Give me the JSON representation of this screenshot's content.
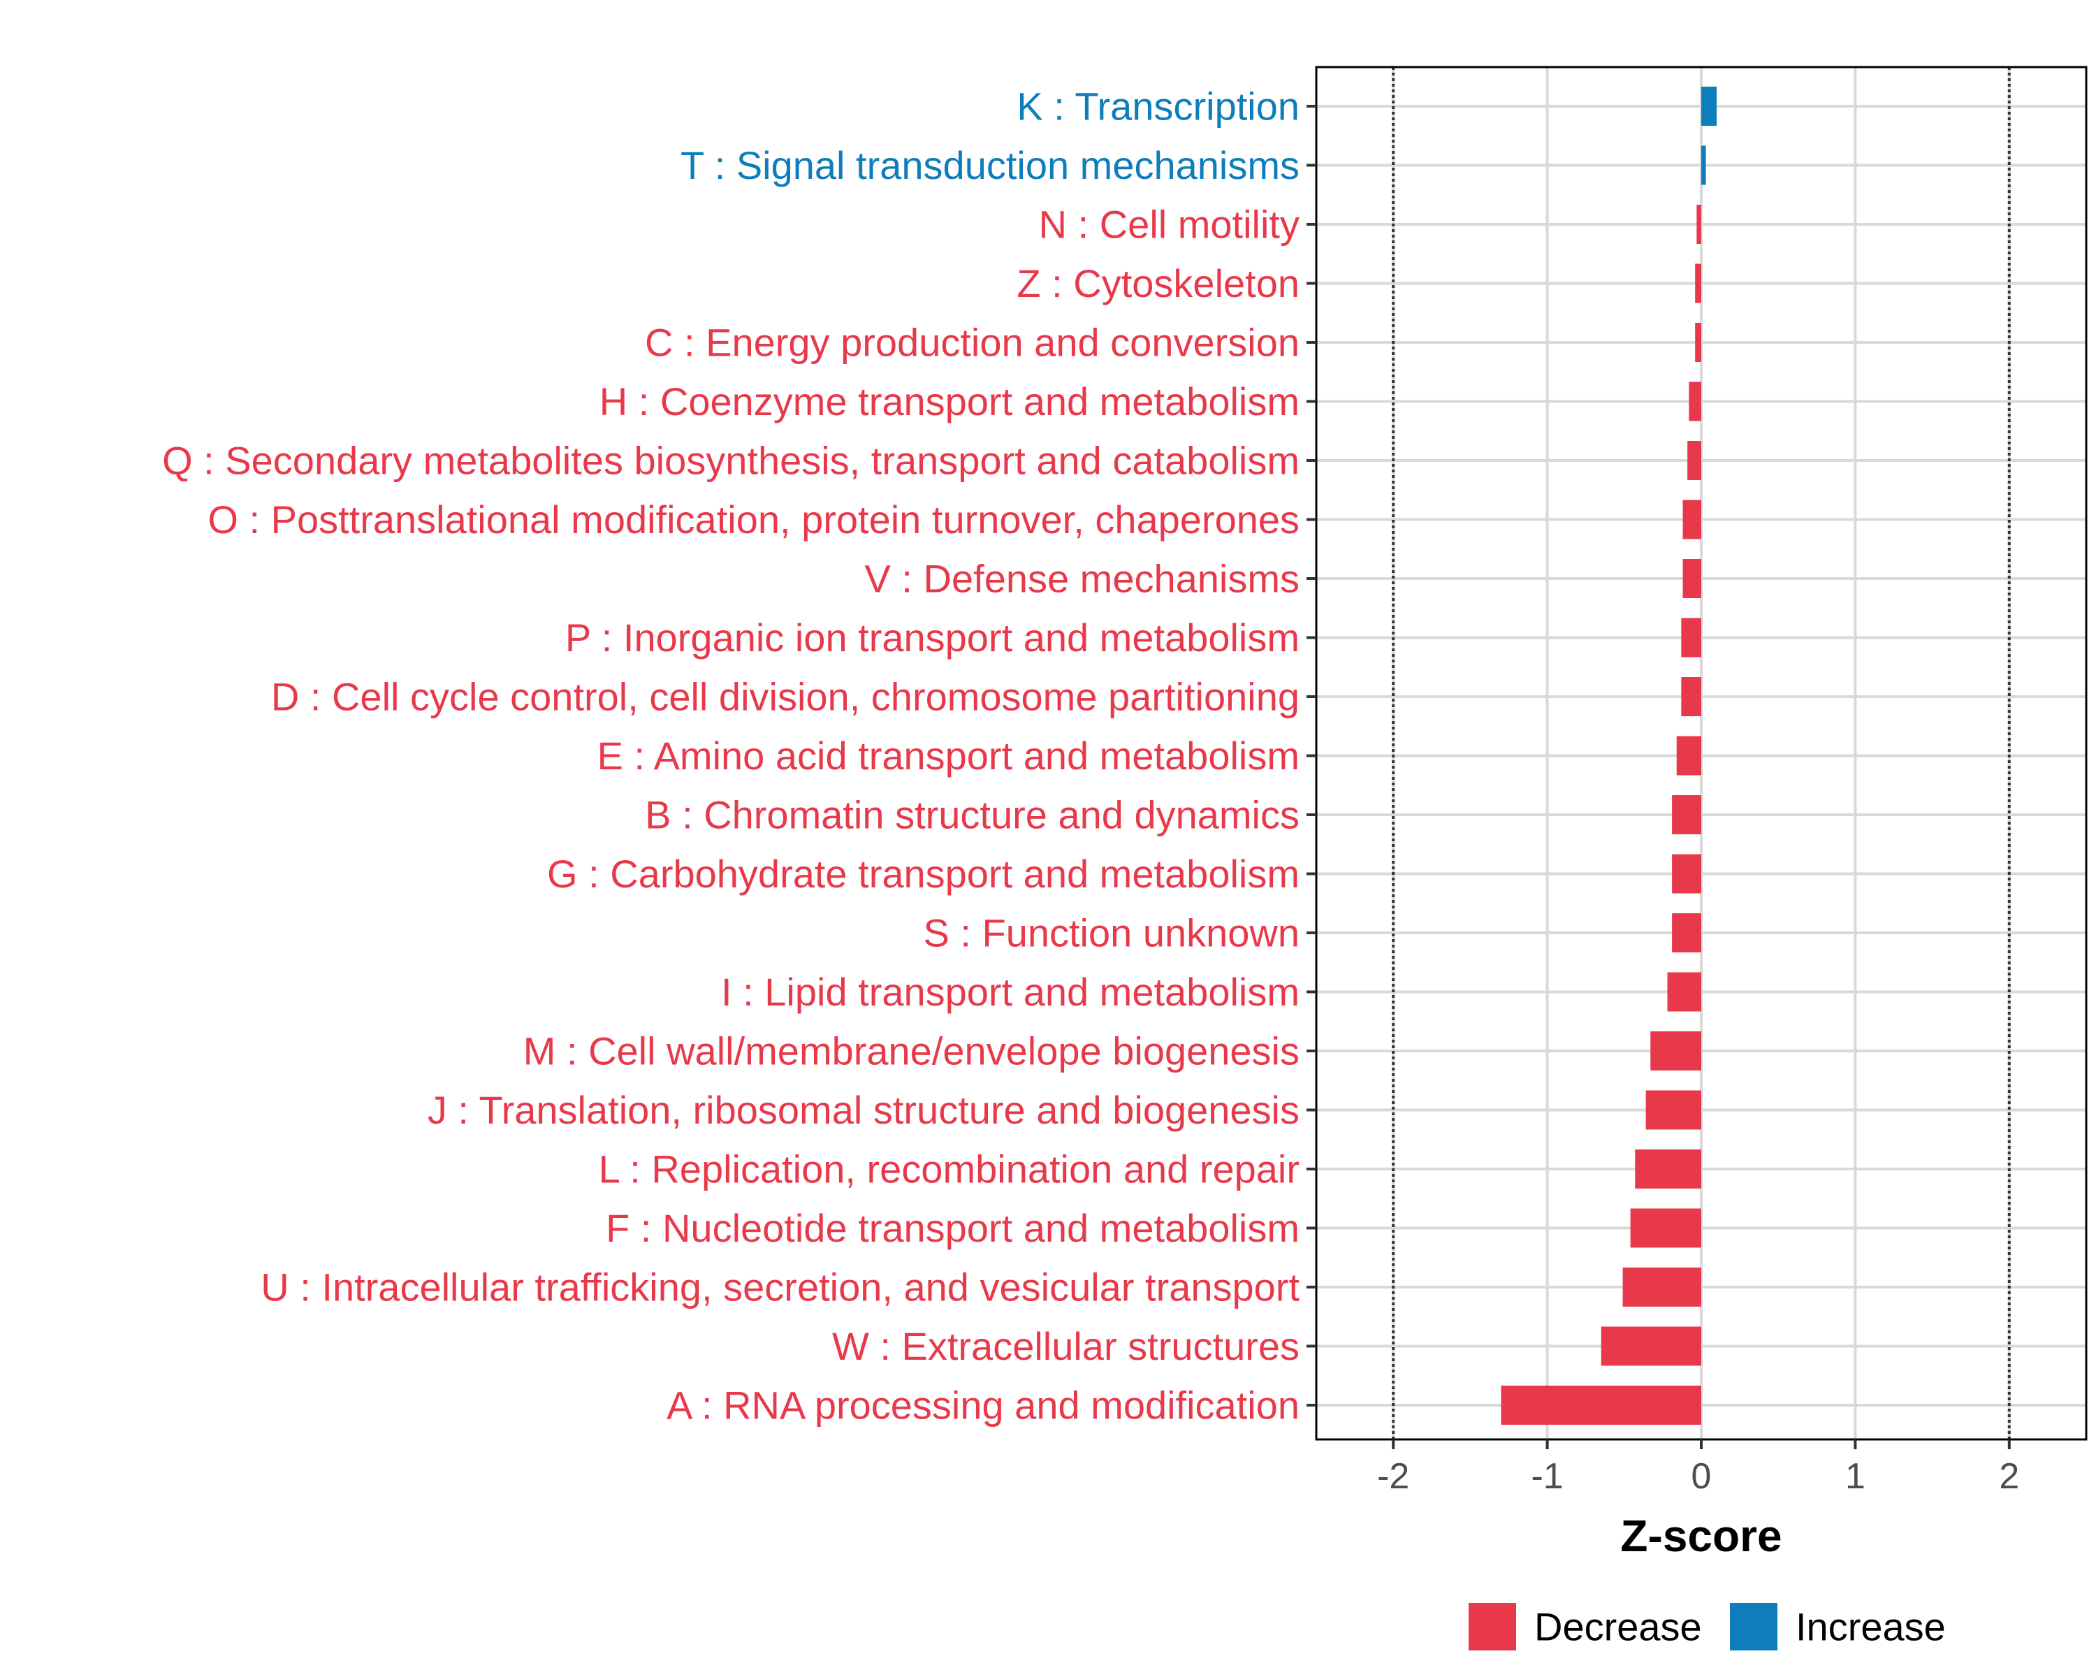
{
  "chart_data": {
    "type": "bar",
    "orientation": "horizontal",
    "xlabel": "Z-score",
    "xlim": [
      -2.5,
      2.5
    ],
    "xticks": [
      -2,
      -1,
      0,
      1,
      2
    ],
    "xtick_labels": [
      "-2",
      "-1",
      "0",
      "1",
      "2"
    ],
    "reference_lines": [
      -2,
      2
    ],
    "grid": true,
    "legend_position": "bottom",
    "categories": [
      "K : Transcription",
      "T : Signal transduction mechanisms",
      "N : Cell motility",
      "Z : Cytoskeleton",
      "C : Energy production and conversion",
      "H : Coenzyme transport and metabolism",
      "Q : Secondary metabolites biosynthesis, transport and catabolism",
      "O : Posttranslational modification, protein turnover, chaperones",
      "V : Defense mechanisms",
      "P : Inorganic ion transport and metabolism",
      "D : Cell cycle control, cell division, chromosome partitioning",
      "E : Amino acid transport and metabolism",
      "B : Chromatin structure and dynamics",
      "G : Carbohydrate transport and metabolism",
      "S : Function unknown",
      "I : Lipid transport and metabolism",
      "M : Cell wall/membrane/envelope biogenesis",
      "J : Translation, ribosomal structure and biogenesis",
      "L : Replication, recombination and repair",
      "F : Nucleotide transport and metabolism",
      "U : Intracellular trafficking, secretion, and vesicular transport",
      "W : Extracellular structures",
      "A : RNA processing and modification"
    ],
    "values": [
      0.1,
      0.03,
      -0.03,
      -0.04,
      -0.04,
      -0.08,
      -0.09,
      -0.12,
      -0.12,
      -0.13,
      -0.13,
      -0.16,
      -0.19,
      -0.19,
      -0.19,
      -0.22,
      -0.33,
      -0.36,
      -0.43,
      -0.46,
      -0.51,
      -0.65,
      -1.3
    ],
    "groups": [
      "Increase",
      "Increase",
      "Decrease",
      "Decrease",
      "Decrease",
      "Decrease",
      "Decrease",
      "Decrease",
      "Decrease",
      "Decrease",
      "Decrease",
      "Decrease",
      "Decrease",
      "Decrease",
      "Decrease",
      "Decrease",
      "Decrease",
      "Decrease",
      "Decrease",
      "Decrease",
      "Decrease",
      "Decrease",
      "Decrease"
    ],
    "legend": [
      {
        "name": "Decrease",
        "color": "#E8394A"
      },
      {
        "name": "Increase",
        "color": "#0D7DBB"
      }
    ],
    "colors": {
      "Decrease": "#E8394A",
      "Increase": "#0D7DBB"
    }
  }
}
